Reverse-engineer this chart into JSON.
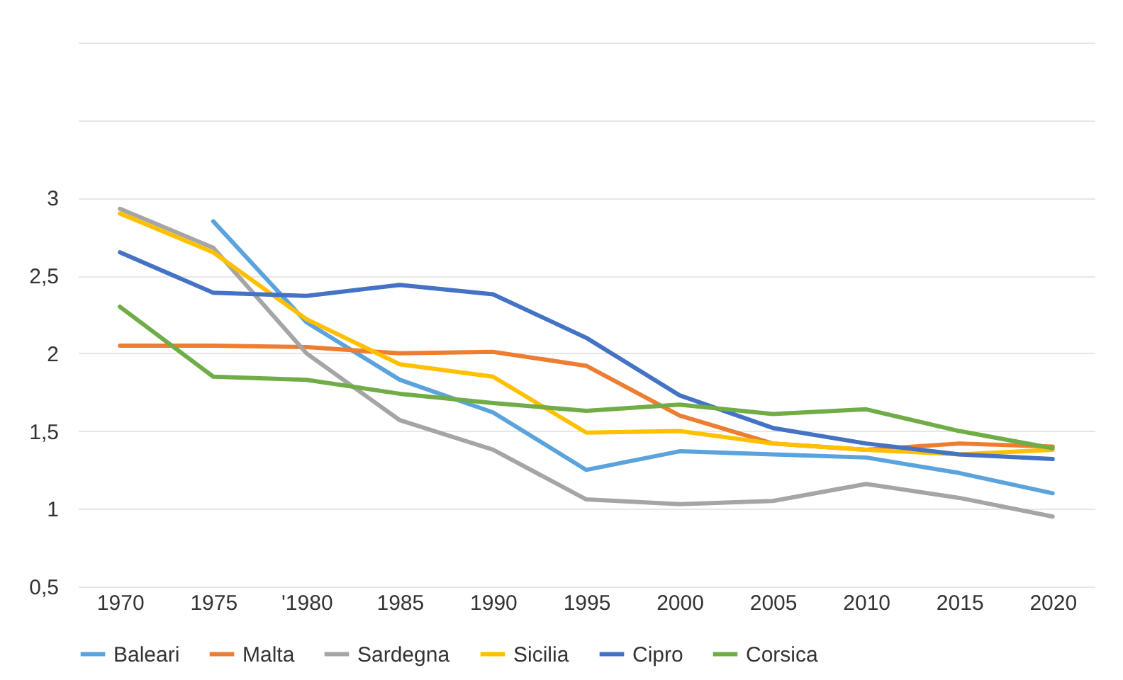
{
  "chart_data": {
    "type": "line",
    "categories": [
      "1970",
      "1975",
      "'1980",
      "1985",
      "1990",
      "1995",
      "2000",
      "2005",
      "2010",
      "2015",
      "2020"
    ],
    "ylim": [
      0.5,
      4
    ],
    "yticks": [
      {
        "value": 0.5,
        "label": "0,5"
      },
      1,
      {
        "value": 1.5,
        "label": "1,5"
      },
      2,
      {
        "value": 2.5,
        "label": "2,5"
      },
      3,
      {
        "value": 3.5,
        "label": null
      },
      {
        "value": 4,
        "label": null
      }
    ],
    "grid": "y",
    "legend": "bottom",
    "marker": "none",
    "line_style": "solid",
    "series": [
      {
        "name": "Baleari",
        "color": "#5ba3dc",
        "values": [
          null,
          2.85,
          2.2,
          1.83,
          1.62,
          1.25,
          1.37,
          1.35,
          1.33,
          1.23,
          1.1
        ]
      },
      {
        "name": "Malta",
        "color": "#ed7d31",
        "values": [
          2.05,
          2.05,
          2.04,
          2.0,
          2.01,
          1.92,
          1.6,
          1.42,
          1.38,
          1.42,
          1.4
        ]
      },
      {
        "name": "Sardegna",
        "color": "#a5a5a5",
        "values": [
          2.93,
          2.68,
          2.0,
          1.57,
          1.38,
          1.06,
          1.03,
          1.05,
          1.16,
          1.07,
          0.95
        ]
      },
      {
        "name": "Sicilia",
        "color": "#ffc000",
        "values": [
          2.9,
          2.65,
          2.22,
          1.93,
          1.85,
          1.49,
          1.5,
          1.42,
          1.38,
          1.35,
          1.38
        ]
      },
      {
        "name": "Cipro",
        "color": "#4472c4",
        "values": [
          2.65,
          2.39,
          2.37,
          2.44,
          2.38,
          2.1,
          1.73,
          1.52,
          1.42,
          1.35,
          1.32
        ]
      },
      {
        "name": "Corsica",
        "color": "#70ad47",
        "values": [
          2.3,
          1.85,
          1.83,
          1.74,
          1.68,
          1.63,
          1.67,
          1.61,
          1.64,
          1.5,
          1.39
        ]
      }
    ]
  }
}
